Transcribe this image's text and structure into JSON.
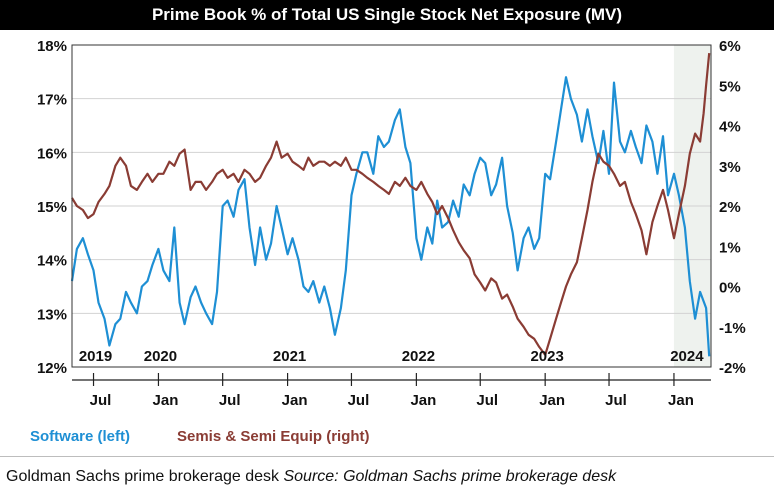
{
  "chart_data": {
    "type": "line",
    "title": "Prime Book % of Total US Single Stock Net Exposure (MV)",
    "x_range": [
      "2019-05",
      "2024-04"
    ],
    "highlight_range": [
      "2024-01",
      "2024-04"
    ],
    "year_labels": [
      {
        "label": "2019",
        "x": "2019-07"
      },
      {
        "label": "2020",
        "x": "2020-01"
      },
      {
        "label": "2021",
        "x": "2021-01"
      },
      {
        "label": "2022",
        "x": "2022-01"
      },
      {
        "label": "2023",
        "x": "2023-01"
      },
      {
        "label": "2024",
        "x": "2024-02"
      }
    ],
    "month_ticks": [
      {
        "label": "Jul",
        "x": "2019-07"
      },
      {
        "label": "Jan",
        "x": "2020-01"
      },
      {
        "label": "Jul",
        "x": "2020-07"
      },
      {
        "label": "Jan",
        "x": "2021-01"
      },
      {
        "label": "Jul",
        "x": "2021-07"
      },
      {
        "label": "Jan",
        "x": "2022-01"
      },
      {
        "label": "Jul",
        "x": "2022-07"
      },
      {
        "label": "Jan",
        "x": "2023-01"
      },
      {
        "label": "Jul",
        "x": "2023-07"
      },
      {
        "label": "Jan",
        "x": "2024-01"
      }
    ],
    "y_left": {
      "min": 12,
      "max": 18,
      "ticks": [
        "12%",
        "13%",
        "14%",
        "15%",
        "16%",
        "17%",
        "18%"
      ]
    },
    "y_right": {
      "min": -2,
      "max": 6,
      "ticks": [
        "-2%",
        "-1%",
        "0%",
        "1%",
        "2%",
        "3%",
        "4%",
        "5%",
        "6%"
      ]
    },
    "series": [
      {
        "name": "Software (left)",
        "axis": "left",
        "color": "#1e8fd4",
        "points": [
          [
            "2019-05-01",
            13.6
          ],
          [
            "2019-05-15",
            14.2
          ],
          [
            "2019-06-01",
            14.4
          ],
          [
            "2019-06-15",
            14.1
          ],
          [
            "2019-07-01",
            13.8
          ],
          [
            "2019-07-15",
            13.2
          ],
          [
            "2019-08-01",
            12.9
          ],
          [
            "2019-08-15",
            12.4
          ],
          [
            "2019-09-01",
            12.8
          ],
          [
            "2019-09-15",
            12.9
          ],
          [
            "2019-10-01",
            13.4
          ],
          [
            "2019-10-15",
            13.2
          ],
          [
            "2019-11-01",
            13.0
          ],
          [
            "2019-11-15",
            13.5
          ],
          [
            "2019-12-01",
            13.6
          ],
          [
            "2019-12-15",
            13.9
          ],
          [
            "2020-01-01",
            14.2
          ],
          [
            "2020-01-15",
            13.8
          ],
          [
            "2020-02-01",
            13.6
          ],
          [
            "2020-02-15",
            14.6
          ],
          [
            "2020-03-01",
            13.2
          ],
          [
            "2020-03-15",
            12.8
          ],
          [
            "2020-04-01",
            13.3
          ],
          [
            "2020-04-15",
            13.5
          ],
          [
            "2020-05-01",
            13.2
          ],
          [
            "2020-05-15",
            13.0
          ],
          [
            "2020-06-01",
            12.8
          ],
          [
            "2020-06-15",
            13.4
          ],
          [
            "2020-07-01",
            15.0
          ],
          [
            "2020-07-15",
            15.1
          ],
          [
            "2020-08-01",
            14.8
          ],
          [
            "2020-08-15",
            15.3
          ],
          [
            "2020-09-01",
            15.5
          ],
          [
            "2020-09-15",
            14.6
          ],
          [
            "2020-10-01",
            13.9
          ],
          [
            "2020-10-15",
            14.6
          ],
          [
            "2020-11-01",
            14.0
          ],
          [
            "2020-11-15",
            14.3
          ],
          [
            "2020-12-01",
            15.0
          ],
          [
            "2020-12-15",
            14.6
          ],
          [
            "2021-01-01",
            14.1
          ],
          [
            "2021-01-15",
            14.4
          ],
          [
            "2021-02-01",
            14.0
          ],
          [
            "2021-02-15",
            13.5
          ],
          [
            "2021-03-01",
            13.4
          ],
          [
            "2021-03-15",
            13.6
          ],
          [
            "2021-04-01",
            13.2
          ],
          [
            "2021-04-15",
            13.5
          ],
          [
            "2021-05-01",
            13.1
          ],
          [
            "2021-05-15",
            12.6
          ],
          [
            "2021-06-01",
            13.1
          ],
          [
            "2021-06-15",
            13.8
          ],
          [
            "2021-07-01",
            15.2
          ],
          [
            "2021-07-15",
            15.6
          ],
          [
            "2021-08-01",
            16.0
          ],
          [
            "2021-08-15",
            16.0
          ],
          [
            "2021-09-01",
            15.6
          ],
          [
            "2021-09-15",
            16.3
          ],
          [
            "2021-10-01",
            16.1
          ],
          [
            "2021-10-15",
            16.2
          ],
          [
            "2021-11-01",
            16.6
          ],
          [
            "2021-11-15",
            16.8
          ],
          [
            "2021-12-01",
            16.1
          ],
          [
            "2021-12-15",
            15.8
          ],
          [
            "2022-01-01",
            14.4
          ],
          [
            "2022-01-15",
            14.0
          ],
          [
            "2022-02-01",
            14.6
          ],
          [
            "2022-02-15",
            14.3
          ],
          [
            "2022-03-01",
            15.1
          ],
          [
            "2022-03-15",
            14.6
          ],
          [
            "2022-04-01",
            14.7
          ],
          [
            "2022-04-15",
            15.1
          ],
          [
            "2022-05-01",
            14.8
          ],
          [
            "2022-05-15",
            15.4
          ],
          [
            "2022-06-01",
            15.2
          ],
          [
            "2022-06-15",
            15.6
          ],
          [
            "2022-07-01",
            15.9
          ],
          [
            "2022-07-15",
            15.8
          ],
          [
            "2022-08-01",
            15.2
          ],
          [
            "2022-08-15",
            15.4
          ],
          [
            "2022-09-01",
            15.9
          ],
          [
            "2022-09-15",
            15.0
          ],
          [
            "2022-10-01",
            14.5
          ],
          [
            "2022-10-15",
            13.8
          ],
          [
            "2022-11-01",
            14.4
          ],
          [
            "2022-11-15",
            14.6
          ],
          [
            "2022-12-01",
            14.2
          ],
          [
            "2022-12-15",
            14.4
          ],
          [
            "2023-01-01",
            15.6
          ],
          [
            "2023-01-15",
            15.5
          ],
          [
            "2023-02-01",
            16.2
          ],
          [
            "2023-02-15",
            16.8
          ],
          [
            "2023-03-01",
            17.4
          ],
          [
            "2023-03-15",
            17.0
          ],
          [
            "2023-04-01",
            16.7
          ],
          [
            "2023-04-15",
            16.2
          ],
          [
            "2023-05-01",
            16.8
          ],
          [
            "2023-05-15",
            16.3
          ],
          [
            "2023-06-01",
            15.8
          ],
          [
            "2023-06-15",
            16.4
          ],
          [
            "2023-07-01",
            15.6
          ],
          [
            "2023-07-15",
            17.3
          ],
          [
            "2023-08-01",
            16.2
          ],
          [
            "2023-08-15",
            16.0
          ],
          [
            "2023-09-01",
            16.4
          ],
          [
            "2023-09-15",
            16.1
          ],
          [
            "2023-10-01",
            15.8
          ],
          [
            "2023-10-15",
            16.5
          ],
          [
            "2023-11-01",
            16.2
          ],
          [
            "2023-11-15",
            15.6
          ],
          [
            "2023-12-01",
            16.3
          ],
          [
            "2023-12-15",
            15.2
          ],
          [
            "2024-01-01",
            15.6
          ],
          [
            "2024-01-15",
            15.2
          ],
          [
            "2024-02-01",
            14.6
          ],
          [
            "2024-02-15",
            13.6
          ],
          [
            "2024-03-01",
            12.9
          ],
          [
            "2024-03-15",
            13.4
          ],
          [
            "2024-04-01",
            13.1
          ],
          [
            "2024-04-10",
            12.2
          ]
        ]
      },
      {
        "name": "Semis & Semi Equip (right)",
        "axis": "right",
        "color": "#8a3c34",
        "points": [
          [
            "2019-05-01",
            2.2
          ],
          [
            "2019-05-15",
            2.0
          ],
          [
            "2019-06-01",
            1.9
          ],
          [
            "2019-06-15",
            1.7
          ],
          [
            "2019-07-01",
            1.8
          ],
          [
            "2019-07-15",
            2.1
          ],
          [
            "2019-08-01",
            2.3
          ],
          [
            "2019-08-15",
            2.5
          ],
          [
            "2019-09-01",
            3.0
          ],
          [
            "2019-09-15",
            3.2
          ],
          [
            "2019-10-01",
            3.0
          ],
          [
            "2019-10-15",
            2.5
          ],
          [
            "2019-11-01",
            2.4
          ],
          [
            "2019-11-15",
            2.6
          ],
          [
            "2019-12-01",
            2.8
          ],
          [
            "2019-12-15",
            2.6
          ],
          [
            "2020-01-01",
            2.8
          ],
          [
            "2020-01-15",
            2.8
          ],
          [
            "2020-02-01",
            3.1
          ],
          [
            "2020-02-15",
            3.0
          ],
          [
            "2020-03-01",
            3.3
          ],
          [
            "2020-03-15",
            3.4
          ],
          [
            "2020-04-01",
            2.4
          ],
          [
            "2020-04-15",
            2.6
          ],
          [
            "2020-05-01",
            2.6
          ],
          [
            "2020-05-15",
            2.4
          ],
          [
            "2020-06-01",
            2.6
          ],
          [
            "2020-06-15",
            2.8
          ],
          [
            "2020-07-01",
            2.9
          ],
          [
            "2020-07-15",
            2.7
          ],
          [
            "2020-08-01",
            2.8
          ],
          [
            "2020-08-15",
            2.6
          ],
          [
            "2020-09-01",
            2.9
          ],
          [
            "2020-09-15",
            2.8
          ],
          [
            "2020-10-01",
            2.6
          ],
          [
            "2020-10-15",
            2.7
          ],
          [
            "2020-11-01",
            3.0
          ],
          [
            "2020-11-15",
            3.2
          ],
          [
            "2020-12-01",
            3.6
          ],
          [
            "2020-12-15",
            3.2
          ],
          [
            "2021-01-01",
            3.3
          ],
          [
            "2021-01-15",
            3.1
          ],
          [
            "2021-02-01",
            3.0
          ],
          [
            "2021-02-15",
            2.9
          ],
          [
            "2021-03-01",
            3.2
          ],
          [
            "2021-03-15",
            3.0
          ],
          [
            "2021-04-01",
            3.1
          ],
          [
            "2021-04-15",
            3.1
          ],
          [
            "2021-05-01",
            3.0
          ],
          [
            "2021-05-15",
            3.1
          ],
          [
            "2021-06-01",
            3.0
          ],
          [
            "2021-06-15",
            3.2
          ],
          [
            "2021-07-01",
            2.9
          ],
          [
            "2021-07-15",
            2.9
          ],
          [
            "2021-08-01",
            2.8
          ],
          [
            "2021-08-15",
            2.7
          ],
          [
            "2021-09-01",
            2.6
          ],
          [
            "2021-09-15",
            2.5
          ],
          [
            "2021-10-01",
            2.4
          ],
          [
            "2021-10-15",
            2.3
          ],
          [
            "2021-11-01",
            2.6
          ],
          [
            "2021-11-15",
            2.5
          ],
          [
            "2021-12-01",
            2.7
          ],
          [
            "2021-12-15",
            2.5
          ],
          [
            "2022-01-01",
            2.4
          ],
          [
            "2022-01-15",
            2.6
          ],
          [
            "2022-02-01",
            2.3
          ],
          [
            "2022-02-15",
            2.1
          ],
          [
            "2022-03-01",
            1.8
          ],
          [
            "2022-03-15",
            2.0
          ],
          [
            "2022-04-01",
            1.7
          ],
          [
            "2022-04-15",
            1.4
          ],
          [
            "2022-05-01",
            1.1
          ],
          [
            "2022-05-15",
            0.9
          ],
          [
            "2022-06-01",
            0.7
          ],
          [
            "2022-06-15",
            0.3
          ],
          [
            "2022-07-01",
            0.1
          ],
          [
            "2022-07-15",
            -0.1
          ],
          [
            "2022-08-01",
            0.2
          ],
          [
            "2022-08-15",
            0.1
          ],
          [
            "2022-09-01",
            -0.3
          ],
          [
            "2022-09-15",
            -0.2
          ],
          [
            "2022-10-01",
            -0.5
          ],
          [
            "2022-10-15",
            -0.8
          ],
          [
            "2022-11-01",
            -1.0
          ],
          [
            "2022-11-15",
            -1.2
          ],
          [
            "2022-12-01",
            -1.3
          ],
          [
            "2022-12-15",
            -1.5
          ],
          [
            "2023-01-01",
            -1.7
          ],
          [
            "2023-01-15",
            -1.3
          ],
          [
            "2023-02-01",
            -0.8
          ],
          [
            "2023-02-15",
            -0.4
          ],
          [
            "2023-03-01",
            0.0
          ],
          [
            "2023-03-15",
            0.3
          ],
          [
            "2023-04-01",
            0.6
          ],
          [
            "2023-04-15",
            1.2
          ],
          [
            "2023-05-01",
            1.9
          ],
          [
            "2023-05-15",
            2.6
          ],
          [
            "2023-06-01",
            3.3
          ],
          [
            "2023-06-15",
            3.1
          ],
          [
            "2023-07-01",
            3.0
          ],
          [
            "2023-07-15",
            2.8
          ],
          [
            "2023-08-01",
            2.5
          ],
          [
            "2023-08-15",
            2.6
          ],
          [
            "2023-09-01",
            2.1
          ],
          [
            "2023-09-15",
            1.8
          ],
          [
            "2023-10-01",
            1.4
          ],
          [
            "2023-10-15",
            0.8
          ],
          [
            "2023-11-01",
            1.6
          ],
          [
            "2023-11-15",
            2.0
          ],
          [
            "2023-12-01",
            2.4
          ],
          [
            "2023-12-15",
            1.9
          ],
          [
            "2024-01-01",
            1.2
          ],
          [
            "2024-01-15",
            1.8
          ],
          [
            "2024-02-01",
            2.5
          ],
          [
            "2024-02-15",
            3.3
          ],
          [
            "2024-03-01",
            3.8
          ],
          [
            "2024-03-15",
            3.6
          ],
          [
            "2024-03-25",
            4.3
          ],
          [
            "2024-04-01",
            5.0
          ],
          [
            "2024-04-10",
            5.8
          ]
        ]
      }
    ]
  },
  "legend": {
    "software": "Software (left)",
    "semis": "Semis & Semi Equip (right)"
  },
  "caption": {
    "source_org": "Goldman Sachs prime brokerage desk",
    "source_label": "Source: Goldman Sachs prime brokerage desk"
  },
  "colors": {
    "software": "#1e8fd4",
    "semis": "#8a3c34",
    "highlight": "#eef2ee",
    "grid": "#d2d2d2"
  }
}
